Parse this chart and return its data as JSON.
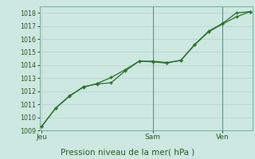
{
  "background_color": "#cce8e0",
  "plot_bg_color": "#cce8e0",
  "grid_color": "#b8d4ce",
  "grid_color_minor": "#d4e8e4",
  "line_color": "#2d6e2d",
  "marker_color": "#2d6e2d",
  "xlabel": "Pression niveau de la mer( hPa )",
  "ylim": [
    1009,
    1018.5
  ],
  "yticks": [
    1009,
    1010,
    1011,
    1012,
    1013,
    1014,
    1015,
    1016,
    1017,
    1018
  ],
  "xtick_labels": [
    "Jeu",
    "Sam",
    "Ven"
  ],
  "xtick_positions": [
    0.0,
    0.533,
    0.867
  ],
  "vline_positions": [
    0.533,
    0.867
  ],
  "series1_x": [
    0.0,
    0.067,
    0.133,
    0.2,
    0.267,
    0.333,
    0.4,
    0.467,
    0.533,
    0.6,
    0.667,
    0.733,
    0.8,
    0.867,
    0.933,
    1.0
  ],
  "series1_y": [
    1009.3,
    1010.7,
    1011.6,
    1012.35,
    1012.55,
    1012.65,
    1013.55,
    1014.3,
    1014.3,
    1014.2,
    1014.35,
    1015.55,
    1016.55,
    1017.15,
    1017.7,
    1018.1
  ],
  "series2_x": [
    0.0,
    0.067,
    0.133,
    0.2,
    0.267,
    0.333,
    0.4,
    0.467,
    0.533,
    0.6,
    0.667,
    0.733,
    0.8,
    0.867,
    0.933,
    1.0
  ],
  "series2_y": [
    1009.3,
    1010.7,
    1011.65,
    1012.3,
    1012.6,
    1013.05,
    1013.65,
    1014.3,
    1014.25,
    1014.15,
    1014.38,
    1015.58,
    1016.6,
    1017.2,
    1018.0,
    1018.1
  ],
  "xlabel_fontsize": 7.5,
  "ytick_fontsize": 5.8,
  "xtick_fontsize": 6.5
}
